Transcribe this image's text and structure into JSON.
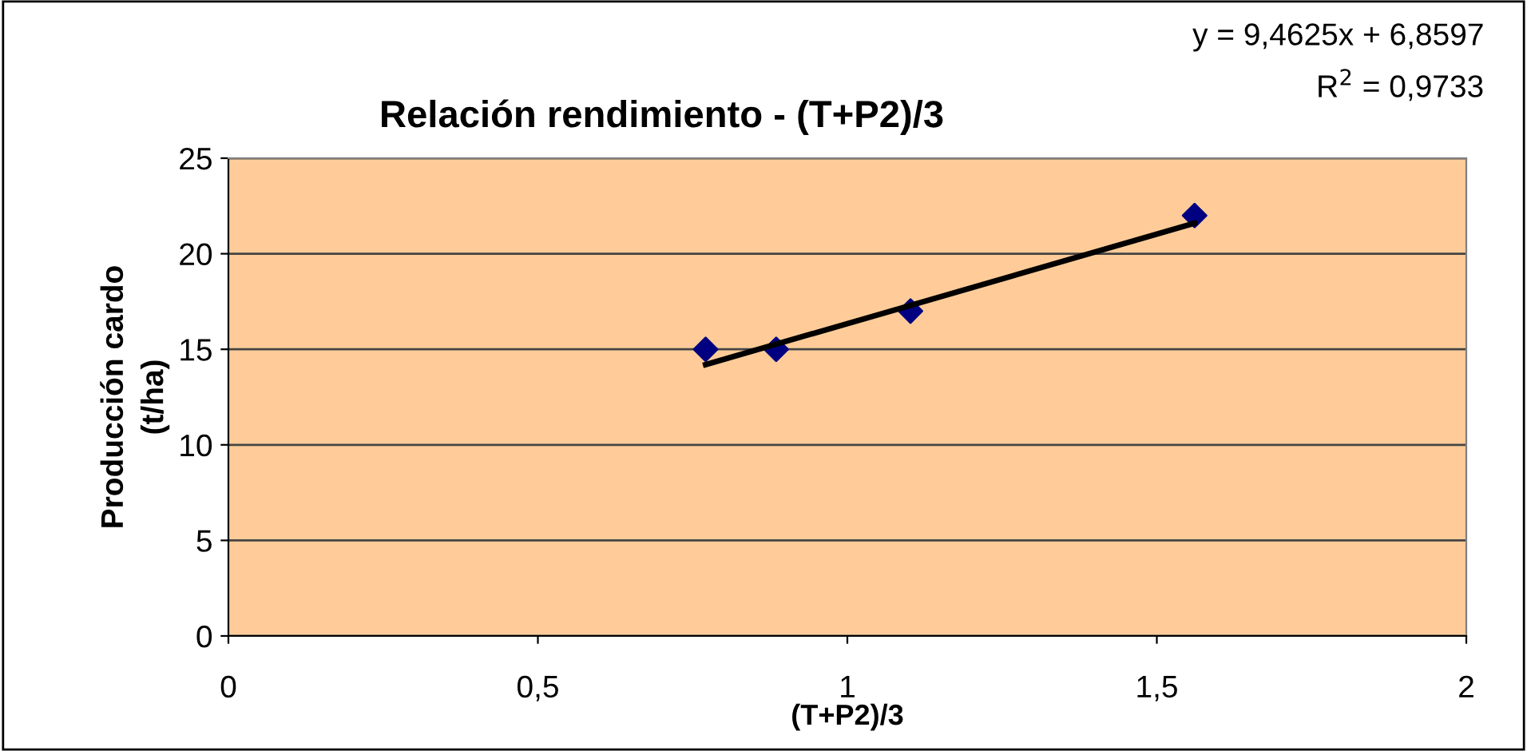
{
  "chart_data": {
    "type": "scatter",
    "title": "Relación rendimiento - (T+P2)/3",
    "xlabel": "(T+P2)/3",
    "ylabel": "Producción cardo\n(t/ha)",
    "annotations": [
      "y = 9,4625x + 6,8597",
      "R$^{2}$ = 0,9733"
    ],
    "series": [
      {
        "color": "#000080",
        "marker": "diamond",
        "x": [
          0.771,
          0.885,
          1.102,
          1.561
        ],
        "values": [
          15,
          15,
          17,
          22
        ]
      },
      {
        "type": "line",
        "color": "#000000",
        "marker": "none",
        "line_style": "solid",
        "x": [
          0.771,
          1.561
        ],
        "values": [
          14.2,
          21.6
        ]
      }
    ],
    "xlim": [
      0,
      2
    ],
    "ylim": [
      0,
      25
    ],
    "xticks": [
      0,
      {
        "value": 0.5,
        "label": "0,5"
      },
      1,
      {
        "value": 1.5,
        "label": "1,5"
      },
      2
    ],
    "yticks": [
      0,
      5,
      10,
      15,
      20,
      25
    ],
    "grid": "y",
    "legend": false
  }
}
